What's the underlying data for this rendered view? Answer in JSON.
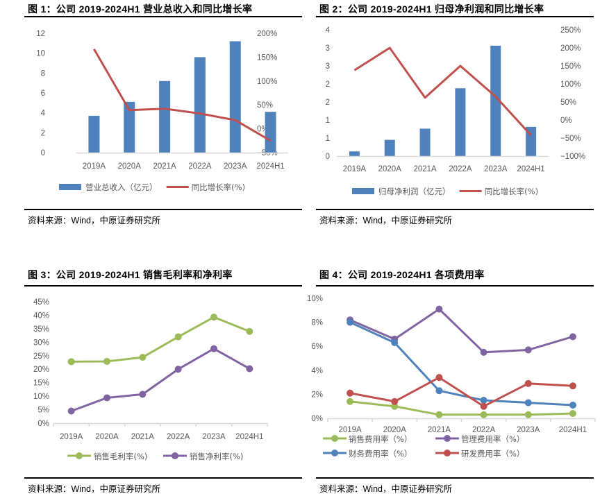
{
  "source_text": "资料来源：Wind，中原证券研究所",
  "chart_data": [
    {
      "id": "fig1",
      "type": "bar",
      "title": "图 1：公司 2019-2024H1 营业总收入和同比增长率",
      "categories": [
        "2019A",
        "2020A",
        "2021A",
        "2022A",
        "2023A",
        "2024H1"
      ],
      "series": [
        {
          "name": "营业总收入（亿元）",
          "kind": "bar",
          "axis": "left",
          "color": "#4F81BD",
          "values": [
            3.7,
            5.1,
            7.2,
            9.6,
            11.2,
            4.1
          ]
        },
        {
          "name": "同比增长率(%)",
          "kind": "line",
          "axis": "right",
          "color": "#C0504D",
          "values": [
            167,
            39,
            42,
            32,
            18,
            -25
          ]
        }
      ],
      "y_left": {
        "min": 0,
        "max": 12,
        "step": 2,
        "tick_labels": [
          "0",
          "2",
          "4",
          "6",
          "8",
          "10",
          "12"
        ]
      },
      "y_right": {
        "min": -50,
        "max": 200,
        "step": 50,
        "tick_labels": [
          "-50%",
          "0%",
          "50%",
          "100%",
          "150%",
          "200%"
        ]
      },
      "xlabel": "",
      "ylabel": "",
      "grid": false,
      "legend": "bottom",
      "source": "资料来源：Wind，中原证券研究所"
    },
    {
      "id": "fig2",
      "type": "bar",
      "title": "图 2：公司 2019-2024H1 归母净利润和同比增长率",
      "categories": [
        "2019A",
        "2020A",
        "2021A",
        "2022A",
        "2023A",
        "2024H1"
      ],
      "series": [
        {
          "name": "归母净利润（亿元）",
          "kind": "bar",
          "axis": "left",
          "color": "#4F81BD",
          "values": [
            0.13,
            0.45,
            0.76,
            1.88,
            3.06,
            0.81
          ]
        },
        {
          "name": "同比增长率(%)",
          "kind": "line",
          "axis": "right",
          "color": "#C0504D",
          "values": [
            138,
            200,
            62,
            150,
            65,
            -42
          ]
        }
      ],
      "y_left": {
        "min": 0,
        "max": 3.5,
        "step": 0.5,
        "tick_labels": [
          "0",
          "1",
          "1",
          "2",
          "2",
          "3",
          "3",
          "4"
        ]
      },
      "y_right": {
        "min": -100,
        "max": 250,
        "step": 50,
        "tick_labels": [
          "-100%",
          "-50%",
          "0%",
          "50%",
          "100%",
          "150%",
          "200%",
          "250%"
        ]
      },
      "xlabel": "",
      "ylabel": "",
      "grid": false,
      "legend": "bottom",
      "source": "资料来源：Wind，中原证券研究所"
    },
    {
      "id": "fig3",
      "type": "line",
      "title": "图 3：公司 2019-2024H1 销售毛利率和净利率",
      "categories": [
        "2019A",
        "2020A",
        "2021A",
        "2022A",
        "2023A",
        "2024H1"
      ],
      "series": [
        {
          "name": "销售毛利率(%)",
          "color": "#9BBB59",
          "values": [
            22.8,
            22.9,
            24.4,
            32.0,
            39.3,
            34.0
          ]
        },
        {
          "name": "销售净利率(%)",
          "color": "#8064A2",
          "values": [
            4.5,
            9.4,
            10.7,
            20.0,
            27.6,
            20.2
          ]
        }
      ],
      "y_left": {
        "min": 0,
        "max": 45,
        "step": 5,
        "tick_labels": [
          "0%",
          "5%",
          "10%",
          "15%",
          "20%",
          "25%",
          "30%",
          "35%",
          "40%",
          "45%"
        ]
      },
      "xlabel": "",
      "ylabel": "",
      "grid": false,
      "legend": "bottom",
      "source": "资料来源：Wind，中原证券研究所"
    },
    {
      "id": "fig4",
      "type": "line",
      "title": "图 4：公司 2019-2024H1 各项费用率",
      "categories": [
        "2019A",
        "2020A",
        "2021A",
        "2022A",
        "2023A",
        "2024H1"
      ],
      "series": [
        {
          "name": "销售费用率（%）",
          "color": "#9BBB59",
          "values": [
            1.4,
            1.0,
            0.3,
            0.3,
            0.3,
            0.4
          ]
        },
        {
          "name": "管理费用率（%）",
          "color": "#8064A2",
          "values": [
            8.2,
            6.6,
            9.1,
            5.5,
            5.7,
            6.8
          ]
        },
        {
          "name": "财务费用率（%）",
          "color": "#4F81BD",
          "values": [
            8.0,
            6.3,
            2.3,
            1.5,
            1.3,
            1.1
          ]
        },
        {
          "name": "研发费用率（%）",
          "color": "#C0504D",
          "values": [
            2.1,
            1.4,
            3.4,
            1.0,
            2.9,
            2.7
          ]
        }
      ],
      "y_left": {
        "min": 0,
        "max": 10,
        "step": 2,
        "tick_labels": [
          "0%",
          "2%",
          "4%",
          "6%",
          "8%",
          "10%"
        ]
      },
      "xlabel": "",
      "ylabel": "",
      "grid": false,
      "legend": "bottom",
      "source": "资料来源：Wind，中原证券研究所"
    }
  ]
}
